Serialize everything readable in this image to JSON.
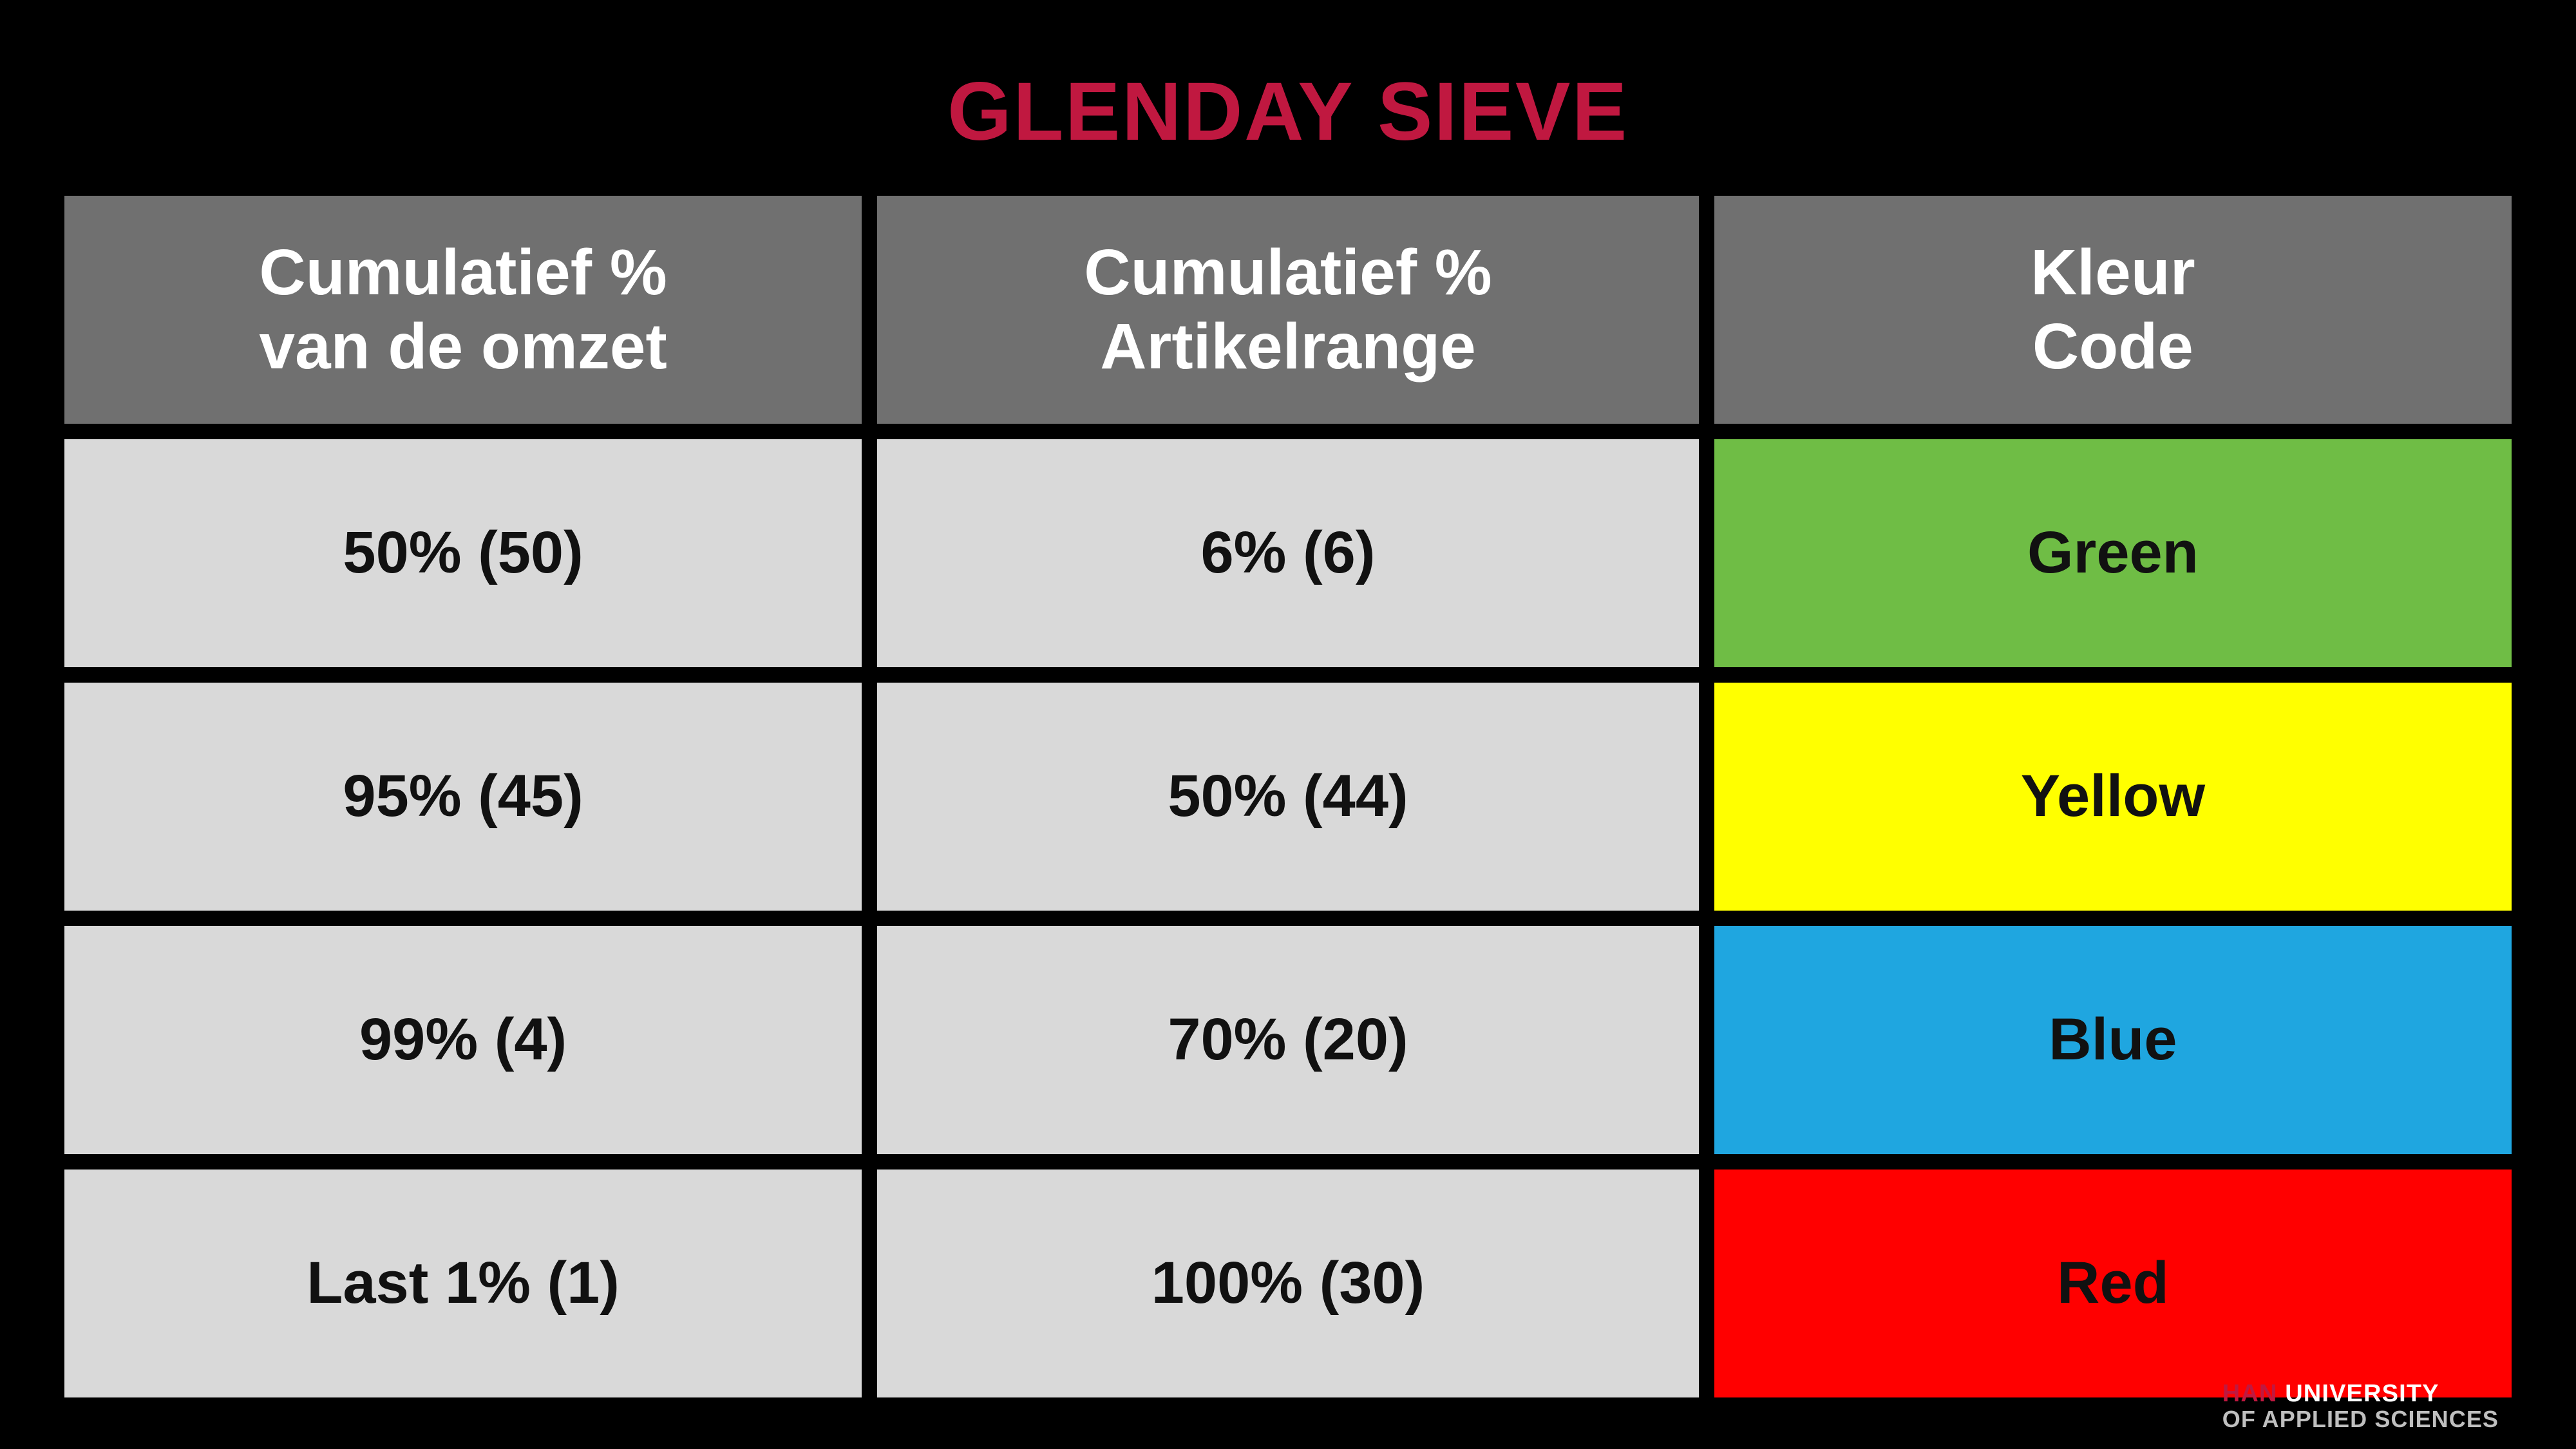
{
  "title": {
    "text": "GLENDAY SIEVE",
    "color": "#c01840"
  },
  "table": {
    "type": "table",
    "background_color": "#000000",
    "gap_color": "#000000",
    "header_bg": "#707070",
    "header_fg": "#ffffff",
    "data_cell_bg_default": "#d9d9d9",
    "data_cell_fg": "#111111",
    "header_fontsize_vw": 2.5,
    "data_fontsize_vw": 2.3,
    "columns": [
      {
        "key": "omzet",
        "label": "Cumulatief %\nvan de omzet"
      },
      {
        "key": "range",
        "label": "Cumulatief %\nArtikelrange"
      },
      {
        "key": "kleur",
        "label": "Kleur\nCode"
      }
    ],
    "rows": [
      {
        "omzet": "50% (50)",
        "range": "6% (6)",
        "kleur": "Green",
        "kleur_bg": "#6fbd45"
      },
      {
        "omzet": "95% (45)",
        "range": "50% (44)",
        "kleur": "Yellow",
        "kleur_bg": "#ffff00"
      },
      {
        "omzet": "99% (4)",
        "range": "70% (20)",
        "kleur": "Blue",
        "kleur_bg": "#1fa6e0"
      },
      {
        "omzet": "Last 1% (1)",
        "range": "100% (30)",
        "kleur": "Red",
        "kleur_bg": "#ff0000"
      }
    ]
  },
  "footer": {
    "accent": "HAN",
    "accent_color": "#c01840",
    "line1_rest": "UNIVERSITY",
    "line2": "OF APPLIED SCIENCES"
  }
}
